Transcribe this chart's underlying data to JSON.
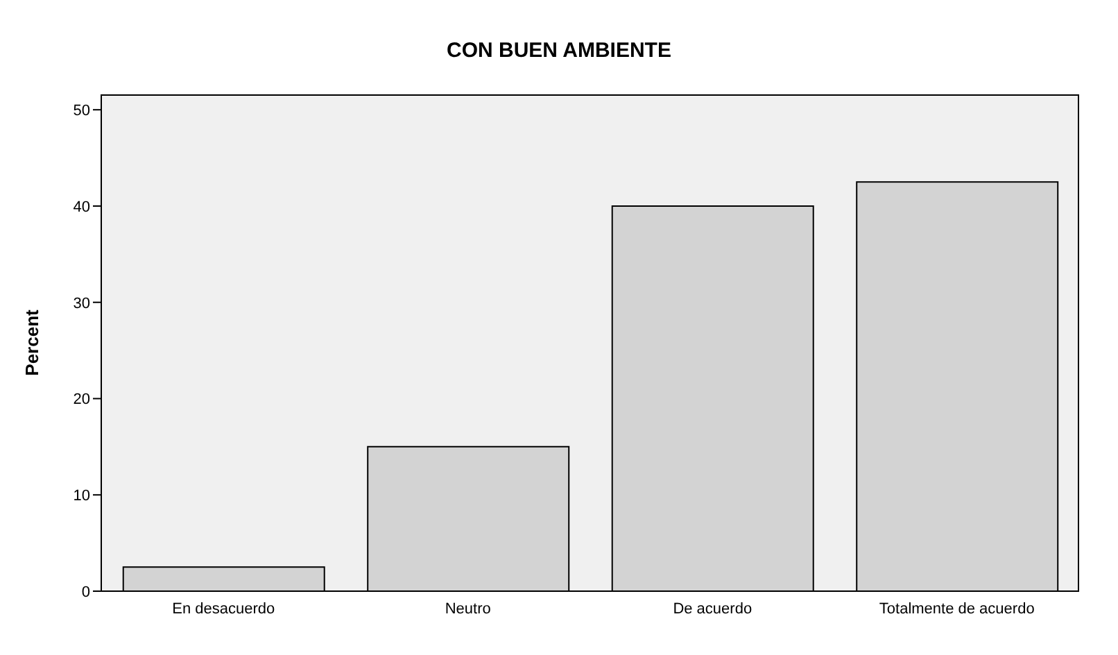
{
  "chart_data": {
    "type": "bar",
    "title": "CON BUEN AMBIENTE",
    "ylabel": "Percent",
    "categories": [
      "En desacuerdo",
      "Neutro",
      "De acuerdo",
      "Totalmente de acuerdo"
    ],
    "values": [
      2.5,
      15,
      40,
      42.5
    ],
    "color": "#d3d3d3",
    "ylim": [
      0,
      51.6
    ],
    "yticks": [
      0,
      10,
      20,
      30,
      40,
      50
    ],
    "grid": false,
    "legend": false
  }
}
